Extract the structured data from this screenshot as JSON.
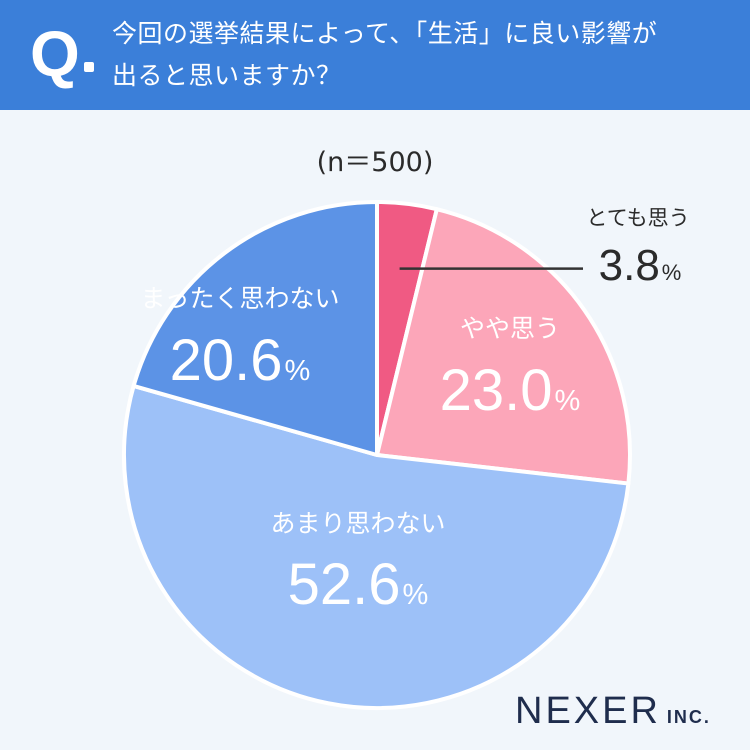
{
  "question": {
    "mark": "Q",
    "line1": "今回の選挙結果によって、「生活」に良い影響が",
    "line2": "出ると思いますか？"
  },
  "sample_size": "(n＝500)",
  "brand": {
    "name": "NEXER",
    "suffix": "INC."
  },
  "chart_data": {
    "type": "pie",
    "title": "今回の選挙結果によって、「生活」に良い影響が出ると思いますか？",
    "n": 500,
    "slices": [
      {
        "label": "とても思う",
        "value": 3.8,
        "value_text": "3.8",
        "color": "#f05a83"
      },
      {
        "label": "やや思う",
        "value": 23.0,
        "value_text": "23.0",
        "color": "#fca6b9"
      },
      {
        "label": "あまり思わない",
        "value": 52.6,
        "value_text": "52.6",
        "color": "#9dc1f8"
      },
      {
        "label": "まったく思わない",
        "value": 20.6,
        "value_text": "20.6",
        "color": "#5c93e6"
      }
    ],
    "unit": "%",
    "start_angle": "12 o'clock",
    "direction": "clockwise"
  }
}
